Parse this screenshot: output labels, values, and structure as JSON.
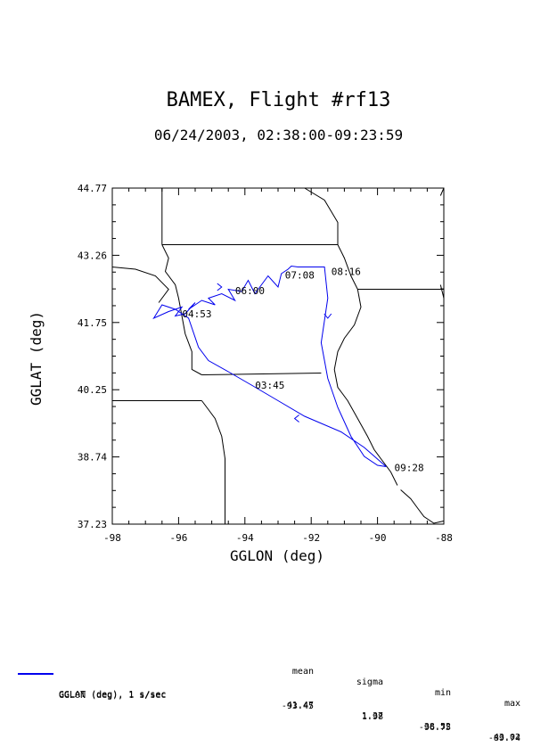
{
  "chart_data": {
    "type": "line",
    "title": "BAMEX, Flight #rf13",
    "subtitle": "06/24/2003, 02:38:00-09:23:59",
    "xlabel": "GGLON (deg)",
    "ylabel": "GGLAT (deg)",
    "xlim": [
      -98,
      -88
    ],
    "ylim": [
      37.23,
      44.77
    ],
    "xticks": [
      "-98",
      "-96",
      "-94",
      "-92",
      "-90",
      "-88"
    ],
    "yticks": [
      "37.23",
      "38.74",
      "40.25",
      "41.75",
      "43.26",
      "44.77"
    ],
    "grid": false,
    "series": [
      {
        "name": "GGLAT (deg), 1 s/sec",
        "color": "#0000ee",
        "x": [
          -89.74,
          -90.4,
          -91.1,
          -92.2,
          -93.0,
          -93.8,
          -94.5,
          -95.1,
          -95.4,
          -95.7,
          -96.1,
          -96.5,
          -96.75,
          -96.3,
          -95.9,
          -96.1,
          -95.8,
          -95.5,
          -95.7,
          -95.3,
          -94.9,
          -95.1,
          -94.7,
          -94.3,
          -94.5,
          -94.1,
          -93.9,
          -93.7,
          -93.5,
          -93.3,
          -93.0,
          -92.9,
          -92.7,
          -92.6,
          -92.4,
          -91.6,
          -91.5,
          -91.7,
          -91.5,
          -91.2,
          -90.8,
          -90.4,
          -90.0,
          -89.74
        ],
        "y": [
          38.52,
          38.95,
          39.3,
          39.65,
          40.0,
          40.35,
          40.65,
          40.9,
          41.2,
          41.85,
          42.05,
          42.15,
          41.85,
          42.0,
          42.1,
          41.9,
          41.95,
          42.2,
          42.05,
          42.25,
          42.15,
          42.3,
          42.4,
          42.25,
          42.5,
          42.45,
          42.7,
          42.4,
          42.6,
          42.8,
          42.55,
          42.85,
          42.95,
          43.02,
          43.0,
          43.0,
          42.3,
          41.3,
          40.5,
          39.85,
          39.2,
          38.75,
          38.55,
          38.52
        ]
      }
    ],
    "arrows": [
      {
        "x": -91.5,
        "y": 41.85,
        "dir": "down"
      },
      {
        "x": -92.5,
        "y": 39.6,
        "dir": "left"
      },
      {
        "x": -94.7,
        "y": 42.55,
        "dir": "right"
      }
    ],
    "time_labels": [
      {
        "text": "03:45",
        "x": -93.8,
        "y": 40.35
      },
      {
        "text": "04:53",
        "x": -96.0,
        "y": 41.95
      },
      {
        "text": "06:00",
        "x": -94.4,
        "y": 42.47
      },
      {
        "text": "07:08",
        "x": -92.9,
        "y": 42.82
      },
      {
        "text": "08:16",
        "x": -91.5,
        "y": 42.9
      },
      {
        "text": "09:28",
        "x": -89.6,
        "y": 38.5
      }
    ],
    "map_outlines": [
      {
        "lon": [
          -96.5,
          -96.5
        ],
        "lat": [
          44.77,
          43.5
        ]
      },
      {
        "lon": [
          -96.5,
          -91.2
        ],
        "lat": [
          43.5,
          43.5
        ]
      },
      {
        "lon": [
          -96.5,
          -96.3,
          -96.4,
          -96.1,
          -96.0,
          -95.9,
          -95.8,
          -95.6,
          -95.6,
          -95.3
        ],
        "lat": [
          43.5,
          43.2,
          42.9,
          42.6,
          42.3,
          41.9,
          41.5,
          41.1,
          40.7,
          40.58
        ]
      },
      {
        "lon": [
          -95.3,
          -91.7
        ],
        "lat": [
          40.58,
          40.62
        ]
      },
      {
        "lon": [
          -95.3,
          -95.1,
          -94.9,
          -94.7,
          -94.6,
          -94.6
        ],
        "lat": [
          40.0,
          39.8,
          39.6,
          39.2,
          38.7,
          37.23
        ]
      },
      {
        "lon": [
          -98.0,
          -95.3
        ],
        "lat": [
          40.0,
          40.0
        ]
      },
      {
        "lon": [
          -98.0,
          -97.3,
          -96.7,
          -96.3,
          -96.6
        ],
        "lat": [
          43.0,
          42.95,
          42.8,
          42.5,
          42.2
        ]
      },
      {
        "lon": [
          -91.2,
          -91.0,
          -90.8,
          -90.6,
          -90.5,
          -90.7,
          -91.0,
          -91.2,
          -91.3,
          -91.2,
          -90.9,
          -90.6,
          -90.3,
          -90.1,
          -89.9,
          -89.6,
          -89.4
        ],
        "lat": [
          43.5,
          43.2,
          42.8,
          42.5,
          42.1,
          41.7,
          41.4,
          41.1,
          40.7,
          40.3,
          40.0,
          39.6,
          39.2,
          38.9,
          38.7,
          38.4,
          38.1
        ]
      },
      {
        "lon": [
          -90.6,
          -88.0
        ],
        "lat": [
          42.5,
          42.5
        ]
      },
      {
        "lon": [
          -92.2,
          -91.6,
          -91.2,
          -91.2
        ],
        "lat": [
          44.77,
          44.5,
          44.0,
          43.5
        ]
      },
      {
        "lon": [
          -89.3,
          -89.0,
          -88.8,
          -88.6,
          -88.3,
          -88.0
        ],
        "lat": [
          38.0,
          37.8,
          37.6,
          37.4,
          37.25,
          37.3
        ]
      },
      {
        "lon": [
          -88.1,
          -88.0
        ],
        "lat": [
          42.6,
          42.3
        ]
      },
      {
        "lon": [
          -88.1,
          -88.0
        ],
        "lat": [
          44.6,
          44.77
        ]
      }
    ]
  },
  "stats": {
    "headers": {
      "mean": "mean",
      "sigma": "sigma",
      "min": "min",
      "max": "max"
    },
    "rows": [
      {
        "name": "GGLAT (deg), 1 s/sec",
        "mean": "41.47",
        "sigma": "1.37",
        "min": "38.52",
        "max": "43.02",
        "swatch_color": "#0000ee"
      },
      {
        "name": "GGLON (deg), 1 s/sec",
        "mean": "-93.45",
        "sigma": "1.98",
        "min": "-96.75",
        "max": "-89.74"
      }
    ]
  }
}
